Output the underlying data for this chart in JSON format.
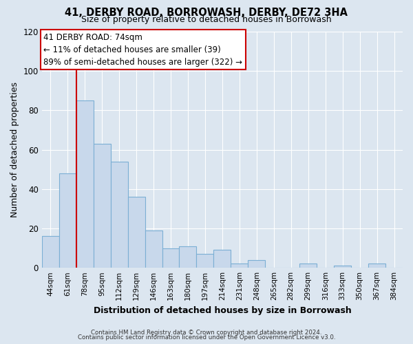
{
  "title": "41, DERBY ROAD, BORROWASH, DERBY, DE72 3HA",
  "subtitle": "Size of property relative to detached houses in Borrowash",
  "xlabel": "Distribution of detached houses by size in Borrowash",
  "ylabel": "Number of detached properties",
  "bar_labels": [
    "44sqm",
    "61sqm",
    "78sqm",
    "95sqm",
    "112sqm",
    "129sqm",
    "146sqm",
    "163sqm",
    "180sqm",
    "197sqm",
    "214sqm",
    "231sqm",
    "248sqm",
    "265sqm",
    "282sqm",
    "299sqm",
    "316sqm",
    "333sqm",
    "350sqm",
    "367sqm",
    "384sqm"
  ],
  "bar_values": [
    16,
    48,
    85,
    63,
    54,
    36,
    19,
    10,
    11,
    7,
    9,
    2,
    4,
    0,
    0,
    2,
    0,
    1,
    0,
    2,
    0
  ],
  "bar_color": "#c8d8eb",
  "bar_edge_color": "#7bafd4",
  "vline_index": 2,
  "vline_color": "#cc0000",
  "ylim": [
    0,
    120
  ],
  "yticks": [
    0,
    20,
    40,
    60,
    80,
    100,
    120
  ],
  "annotation_title": "41 DERBY ROAD: 74sqm",
  "annotation_line1": "← 11% of detached houses are smaller (39)",
  "annotation_line2": "89% of semi-detached houses are larger (322) →",
  "annotation_box_color": "#ffffff",
  "annotation_box_edge": "#cc0000",
  "footer_line1": "Contains HM Land Registry data © Crown copyright and database right 2024.",
  "footer_line2": "Contains public sector information licensed under the Open Government Licence v3.0.",
  "background_color": "#dce6f0",
  "plot_bg_color": "#dce6f0",
  "grid_color": "#ffffff"
}
